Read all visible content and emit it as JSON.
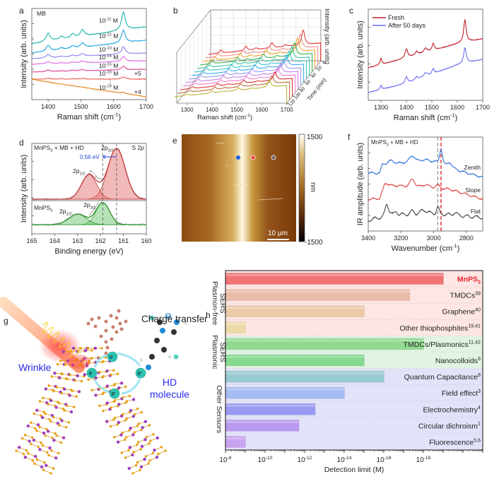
{
  "panel_labels": {
    "a": "a",
    "b": "b",
    "c": "c",
    "d": "d",
    "e": "e",
    "f": "f",
    "g": "g",
    "h": "h"
  },
  "chart_data": [
    {
      "panel": "a",
      "type": "line",
      "annotation": "MB",
      "xlabel": {
        "text": "Raman shift (cm",
        "sup": "-1",
        "end": ")"
      },
      "ylabel": "Intensity (arb. units)",
      "xlim": [
        1350,
        1700
      ],
      "xticks": [
        1400,
        1500,
        1600,
        1700
      ],
      "peaks_cm": [
        1400,
        1440,
        1475,
        1505,
        1630
      ],
      "series": [
        {
          "base": "10",
          "exp": "-11",
          "unit": " M",
          "color": "#1fb3a8",
          "rel_intensity": 1.0
        },
        {
          "base": "10",
          "exp": "-12",
          "unit": " M",
          "color": "#1ea6e0",
          "rel_intensity": 0.7
        },
        {
          "base": "10",
          "exp": "-13",
          "unit": " M",
          "color": "#8a8aee",
          "rel_intensity": 0.4
        },
        {
          "base": "10",
          "exp": "-14",
          "unit": " M",
          "color": "#e06ee0",
          "rel_intensity": 0.27
        },
        {
          "base": "10",
          "exp": "-15",
          "unit": " M",
          "color": "#e34a98",
          "rel_intensity": 0.2
        },
        {
          "base": "10",
          "exp": "-16",
          "unit": " M",
          "color": "#f0625c",
          "rel_intensity": 0.12,
          "scale_note": "×5"
        },
        {
          "base": "10",
          "exp": "-19",
          "unit": " M",
          "color": "#e5881e",
          "rel_intensity": 0.06,
          "scale_note": "×4"
        }
      ],
      "ellipsis": "⋮"
    },
    {
      "panel": "b",
      "type": "line",
      "subtype": "waterfall-3d",
      "xlabel": {
        "text": "Raman shift (cm",
        "sup": "-1",
        "end": ")"
      },
      "zlabel": "Intensity (arb. units)",
      "ylabel": "Time (min)",
      "xlim": [
        1250,
        1700
      ],
      "xticks": [
        1300,
        1400,
        1500,
        1600,
        1700
      ],
      "time_ticks": [
        0,
        20,
        40,
        60,
        80,
        100,
        120
      ],
      "series_colors": [
        "#e82a2a",
        "#f08a80",
        "#f0a020",
        "#2fb040",
        "#2ec49a",
        "#2ec0c8",
        "#2ea6e8",
        "#8f94f0",
        "#c478e6",
        "#f070c8",
        "#d62828",
        "#b8632a",
        "#b4b02a"
      ]
    },
    {
      "panel": "c",
      "type": "line",
      "xlabel": {
        "text": "Raman shift (cm",
        "sup": "-1",
        "end": ")"
      },
      "ylabel": "Intensity (arb. units)",
      "xlim": [
        1250,
        1700
      ],
      "xticks": [
        1300,
        1400,
        1500,
        1600,
        1700
      ],
      "legend": "top-left",
      "series": [
        {
          "name": "Fresh",
          "color": "#c3242b"
        },
        {
          "name": "After 50 days",
          "color": "#6a6cf0"
        }
      ]
    },
    {
      "panel": "d",
      "type": "area",
      "xlabel": "Binding energy (eV)",
      "ylabel": "Intensity (arb. units)",
      "xlim": [
        165,
        160
      ],
      "xticks": [
        165,
        164,
        163,
        162,
        161,
        160
      ],
      "title_right": {
        "text": "S 2",
        "ital": "p"
      },
      "shift_label": "0.56 eV",
      "top": {
        "name": {
          "a": "MnPS",
          "sub": "3",
          "b": " + MB + HD"
        },
        "color": "#d9534f",
        "peaks": [
          {
            "main": "2p",
            "sub": "3/2",
            "center": 161.3
          },
          {
            "main": "2p",
            "sub": "1/2",
            "center": 162.5
          }
        ]
      },
      "bottom": {
        "name": {
          "a": "MnPS",
          "sub": "3"
        },
        "color": "#3ea63e",
        "peaks": [
          {
            "main": "2p",
            "sub": "3/2",
            "center": 161.9
          },
          {
            "main": "2p",
            "sub": "1/2",
            "center": 163.0
          }
        ]
      }
    },
    {
      "panel": "f",
      "type": "line",
      "annotation": {
        "a": "MnPS",
        "sub": "3",
        "b": " + MB + HD"
      },
      "xlabel": {
        "text": "Wavenumber (cm",
        "sup": "-1",
        "end": ")"
      },
      "ylabel": "IR amplitude (arb. units)",
      "xlim": [
        3400,
        2700
      ],
      "xticks": [
        3400,
        3200,
        3000,
        2800
      ],
      "markers_cm": [
        {
          "x": 2975,
          "color": "#999999"
        },
        {
          "x": 2955,
          "color": "#d9262b"
        }
      ],
      "series": [
        {
          "name": "Zenith",
          "color": "#2f73d8"
        },
        {
          "name": "Slope",
          "color": "#e04848"
        },
        {
          "name": "Flat",
          "color": "#4a4a4a"
        }
      ]
    },
    {
      "panel": "h",
      "type": "bar",
      "orientation": "horizontal",
      "xscale": "log",
      "xlabel": "Detection limit (M)",
      "xlim": [
        1e-08,
        1e-21
      ],
      "xticks": [
        {
          "base": "10",
          "exp": "-8"
        },
        {
          "base": "10",
          "exp": "-10"
        },
        {
          "base": "10",
          "exp": "-12"
        },
        {
          "base": "10",
          "exp": "-14"
        },
        {
          "base": "10",
          "exp": "-16"
        },
        {
          "base": "10",
          "exp": "-18"
        }
      ],
      "groups": [
        {
          "lines": [
            "Plasmon-free",
            "SERS"
          ],
          "rows": [
            0,
            3
          ],
          "bg": "#fde6e3"
        },
        {
          "lines": [
            "Plasmonic",
            "SERS"
          ],
          "rows": [
            4,
            5
          ],
          "bg": "#e1f4e3"
        },
        {
          "lines": [
            "Other Sensors"
          ],
          "rows": [
            6,
            10
          ],
          "bg": "#e2e2f9"
        }
      ],
      "bars": [
        {
          "label": "MnPS",
          "sub": "3",
          "ref": "",
          "value": 1e-19,
          "color": "#f07474",
          "highlight": true
        },
        {
          "label": "TMDCs",
          "ref": "39",
          "value": 5e-18,
          "color": "#e9bca9"
        },
        {
          "label": "Graphene",
          "ref": "40",
          "value": 1e-15,
          "color": "#eccaa7"
        },
        {
          "label": "Other thiophosphites",
          "ref": "19,41",
          "value": 1e-09,
          "color": "#ecdaa9"
        },
        {
          "label": "TMDCs/Plasmonics",
          "ref": "11,42",
          "value": 1e-18,
          "color": "#92da92"
        },
        {
          "label": "Nanocolloids",
          "ref": "9",
          "value": 1e-15,
          "color": "#86da90"
        },
        {
          "label": "Quantum Capacitance",
          "ref": "8",
          "value": 1e-16,
          "color": "#98cad2"
        },
        {
          "label": "Field effect",
          "ref": "3",
          "value": 1e-14,
          "color": "#a4bcf2"
        },
        {
          "label": "Electrochemistry",
          "ref": "4",
          "value": 3e-13,
          "color": "#9a9af2"
        },
        {
          "label": "Circular dichroism",
          "ref": "1",
          "value": 2e-12,
          "color": "#b99af0"
        },
        {
          "label": "Fluorescence",
          "ref": "5,6",
          "value": 1e-09,
          "color": "#c9a2f0"
        }
      ],
      "highlight_color": "#e8262b"
    }
  ],
  "panel_e": {
    "type": "afm-image",
    "colorbar": {
      "max": "1500",
      "min": "-1500",
      "unit": "nm"
    },
    "scale_bar": "10 µm",
    "markers": [
      {
        "color": "#1f5fe0"
      },
      {
        "color": "#f03a3a"
      },
      {
        "color": "#666666"
      }
    ]
  },
  "panel_g": {
    "title": "Charge transfer",
    "wrinkle_label": "Wrinkle",
    "molecule_label": [
      "HD",
      "molecule"
    ],
    "electron": "e",
    "electron_sup": "-"
  }
}
